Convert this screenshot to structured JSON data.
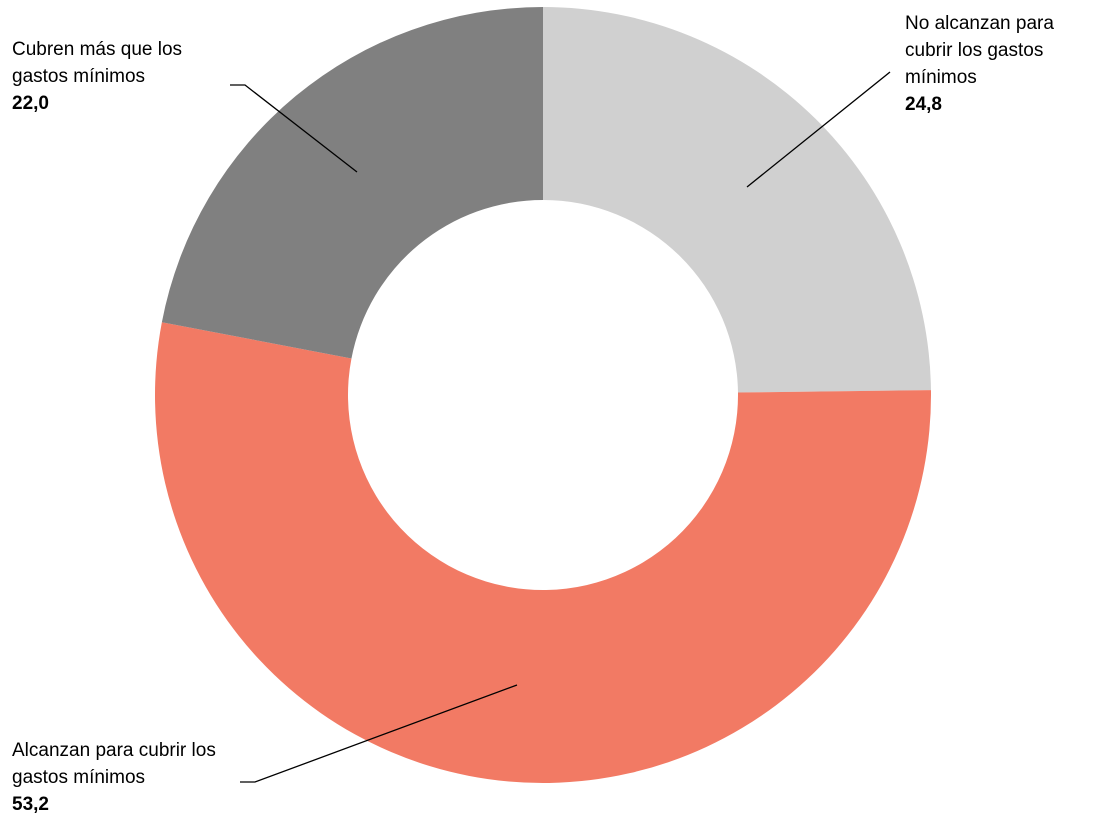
{
  "chart_data": {
    "type": "donut",
    "categories": [
      "No alcanzan para cubrir los gastos mínimos",
      "Alcanzan para cubrir los gastos mínimos",
      "Cubren más que los gastos mínimos"
    ],
    "values": [
      24.8,
      53.2,
      22.0
    ],
    "value_labels": [
      "24,8",
      "53,2",
      "22,0"
    ],
    "colors": [
      "#d0d0d0",
      "#f27a64",
      "#808080"
    ]
  }
}
